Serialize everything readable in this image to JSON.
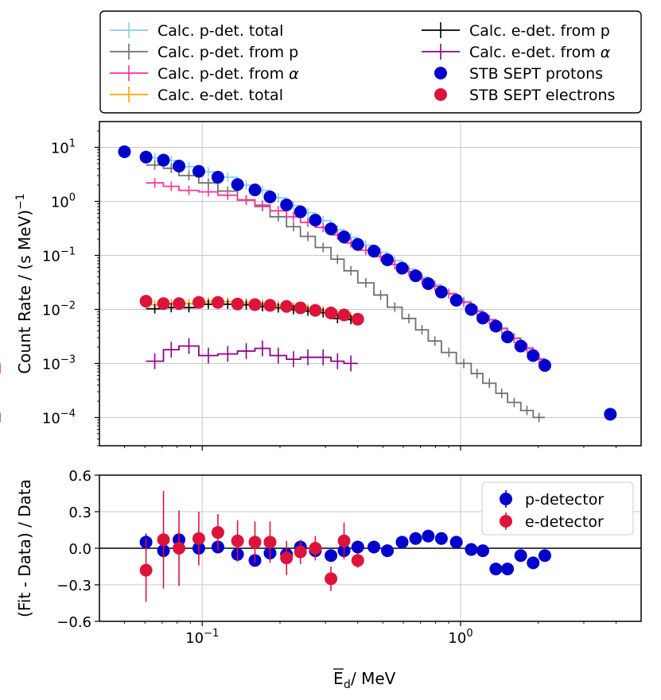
{
  "chart_data": [
    {
      "type": "scatter",
      "panel": "main",
      "xscale": "log",
      "yscale": "log",
      "xlim": [
        0.04,
        5.0
      ],
      "ylim": [
        3e-05,
        30
      ],
      "ylabel_main": "Count Rate / (s MeV)",
      "ylabel_exp": "−1",
      "yticks": [
        {
          "value": 10,
          "base": "10",
          "exp": "1"
        },
        {
          "value": 1,
          "base": "10",
          "exp": "0"
        },
        {
          "value": 0.1,
          "base": "10",
          "exp": "−1"
        },
        {
          "value": 0.01,
          "base": "10",
          "exp": "−2"
        },
        {
          "value": 0.001,
          "base": "10",
          "exp": "−3"
        },
        {
          "value": 0.0001,
          "base": "10",
          "exp": "−4"
        }
      ],
      "legend_position": "above",
      "legend": [
        {
          "label_pre": "Calc. p-det. total",
          "label_greek": "",
          "color": "#87ceeb",
          "kind": "step"
        },
        {
          "label_pre": "Calc. p-det. from p",
          "label_greek": "",
          "color": "#707070",
          "kind": "step"
        },
        {
          "label_pre": "Calc. p-det. from ",
          "label_greek": "α",
          "color": "#ff3399",
          "kind": "step"
        },
        {
          "label_pre": "Calc. e-det. total",
          "label_greek": "",
          "color": "#ffa500",
          "kind": "step"
        },
        {
          "label_pre": "Calc. e-det. from p",
          "label_greek": "",
          "color": "#000000",
          "kind": "step"
        },
        {
          "label_pre": "Calc. e-det. from ",
          "label_greek": "α",
          "color": "#8b008b",
          "kind": "step"
        },
        {
          "label_pre": "STB SEPT protons",
          "label_greek": "",
          "color": "#0000cd",
          "kind": "marker"
        },
        {
          "label_pre": "STB SEPT electrons",
          "label_greek": "",
          "color": "#dc143c",
          "kind": "marker"
        }
      ],
      "series": [
        {
          "name": "STB SEPT protons",
          "kind": "points",
          "color": "#0000cd",
          "x": [
            0.05,
            0.0606,
            0.0708,
            0.0813,
            0.097,
            0.115,
            0.137,
            0.16,
            0.183,
            0.212,
            0.24,
            0.274,
            0.315,
            0.354,
            0.4,
            0.462,
            0.521,
            0.594,
            0.67,
            0.75,
            0.843,
            0.963,
            1.1,
            1.22,
            1.37,
            1.52,
            1.71,
            1.91,
            2.12,
            3.8
          ],
          "y": [
            8.3,
            6.6,
            5.8,
            4.5,
            3.6,
            2.8,
            2.05,
            1.63,
            1.21,
            0.86,
            0.64,
            0.45,
            0.31,
            0.22,
            0.16,
            0.12,
            0.083,
            0.058,
            0.042,
            0.03,
            0.021,
            0.0148,
            0.01,
            0.0069,
            0.0049,
            0.0031,
            0.0021,
            0.0014,
            0.00092,
            0.000115
          ]
        },
        {
          "name": "STB SEPT electrons",
          "kind": "points",
          "color": "#dc143c",
          "x": [
            0.0606,
            0.0708,
            0.0813,
            0.097,
            0.115,
            0.137,
            0.16,
            0.183,
            0.212,
            0.24,
            0.274,
            0.315,
            0.354,
            0.4
          ],
          "y": [
            0.0142,
            0.0128,
            0.0128,
            0.0135,
            0.0135,
            0.0126,
            0.0123,
            0.0119,
            0.0114,
            0.0107,
            0.0096,
            0.0086,
            0.0079,
            0.0066
          ]
        },
        {
          "name": "Calc. p-det. total",
          "kind": "step",
          "color": "#87ceeb",
          "edges": [
            0.0606,
            0.0708,
            0.0813,
            0.097,
            0.115,
            0.137,
            0.16,
            0.183,
            0.212,
            0.24,
            0.274,
            0.315,
            0.354,
            0.4,
            0.462,
            0.521,
            0.594,
            0.67,
            0.75,
            0.843,
            0.963,
            1.1,
            1.22,
            1.37,
            1.52,
            1.71,
            1.91,
            2.12
          ],
          "values": [
            6.4,
            5.7,
            4.4,
            3.5,
            2.8,
            2.0,
            1.6,
            1.17,
            0.84,
            0.62,
            0.44,
            0.3,
            0.215,
            0.155,
            0.114,
            0.08,
            0.056,
            0.04,
            0.029,
            0.02,
            0.0142,
            0.0096,
            0.0066,
            0.0046,
            0.003,
            0.002,
            0.00125,
            0.00085
          ]
        },
        {
          "name": "Calc. p-det. from p",
          "kind": "step",
          "color": "#707070",
          "edges": [
            0.0606,
            0.0708,
            0.0813,
            0.097,
            0.115,
            0.137,
            0.16,
            0.183,
            0.212,
            0.24,
            0.274,
            0.315,
            0.354,
            0.4,
            0.462,
            0.521,
            0.594,
            0.67,
            0.75,
            0.843,
            0.963,
            1.1,
            1.22,
            1.37,
            1.52,
            1.71,
            1.91,
            2.12
          ],
          "values": [
            4.7,
            4.1,
            3.0,
            2.2,
            1.55,
            1.07,
            0.8,
            0.52,
            0.34,
            0.225,
            0.14,
            0.085,
            0.052,
            0.031,
            0.0185,
            0.011,
            0.0068,
            0.0042,
            0.0026,
            0.0016,
            0.001,
            0.00065,
            0.00043,
            0.00028,
            0.00019,
            0.000135,
            0.0001,
            0.0001
          ]
        },
        {
          "name": "Calc. p-det. from α",
          "kind": "step",
          "color": "#ff3399",
          "edges": [
            0.0606,
            0.0708,
            0.0813,
            0.097,
            0.115,
            0.137,
            0.16,
            0.183,
            0.212,
            0.24,
            0.274,
            0.315,
            0.354,
            0.4,
            0.462,
            0.521,
            0.594,
            0.67,
            0.75,
            0.843,
            0.963,
            1.1,
            1.22,
            1.37,
            1.52,
            1.71,
            1.91,
            2.12
          ],
          "values": [
            2.2,
            1.9,
            1.6,
            1.5,
            1.3,
            1.05,
            0.85,
            0.67,
            0.52,
            0.41,
            0.33,
            0.24,
            0.17,
            0.125,
            0.095,
            0.068,
            0.05,
            0.037,
            0.027,
            0.0195,
            0.0135,
            0.0092,
            0.0064,
            0.0044,
            0.0029,
            0.0019,
            0.0012,
            0.0008
          ]
        },
        {
          "name": "Calc. e-det. total",
          "kind": "step",
          "color": "#ffa500",
          "edges": [
            0.0606,
            0.0708,
            0.0813,
            0.097,
            0.115,
            0.137,
            0.16,
            0.183,
            0.212,
            0.24,
            0.274,
            0.315,
            0.354,
            0.4
          ],
          "values": [
            0.0122,
            0.0128,
            0.0128,
            0.0138,
            0.0138,
            0.0133,
            0.0126,
            0.012,
            0.011,
            0.0103,
            0.0095,
            0.008,
            0.0072
          ]
        },
        {
          "name": "Calc. e-det. from p",
          "kind": "step",
          "color": "#000000",
          "edges": [
            0.0606,
            0.0708,
            0.0813,
            0.097,
            0.115,
            0.137,
            0.16,
            0.183,
            0.212,
            0.24,
            0.274,
            0.315,
            0.354,
            0.4
          ],
          "values": [
            0.0103,
            0.0108,
            0.0108,
            0.0125,
            0.0125,
            0.0122,
            0.0113,
            0.0107,
            0.0099,
            0.0093,
            0.0087,
            0.0068,
            0.0065
          ]
        },
        {
          "name": "Calc. e-det. from α",
          "kind": "step",
          "color": "#8b008b",
          "edges": [
            0.0606,
            0.0708,
            0.0813,
            0.097,
            0.115,
            0.137,
            0.16,
            0.183,
            0.212,
            0.24,
            0.274,
            0.315,
            0.354,
            0.4
          ],
          "values": [
            0.0011,
            0.0018,
            0.0021,
            0.0014,
            0.0015,
            0.0017,
            0.0019,
            0.0014,
            0.0012,
            0.0013,
            0.0013,
            0.0011,
            0.001
          ]
        }
      ]
    },
    {
      "type": "scatter",
      "panel": "residual",
      "xscale": "log",
      "xlim": [
        0.04,
        5.0
      ],
      "ylim": [
        -0.6,
        0.6
      ],
      "yticks": [
        0.6,
        0.3,
        0.0,
        -0.3,
        -0.6
      ],
      "ytick_labels": [
        "0.6",
        "0.3",
        "0.0",
        "−0.3",
        "−0.6"
      ],
      "ylabel": "(Fit - Data) / Data",
      "xlabel_symbol": "E",
      "xlabel_sub": "d",
      "xlabel_unit": " / MeV",
      "xticks": [
        {
          "value": 0.1,
          "base": "10",
          "exp": "−1"
        },
        {
          "value": 1,
          "base": "10",
          "exp": "0"
        }
      ],
      "legend_position": "top-right",
      "legend": [
        {
          "label": "p-detector",
          "color": "#0000cd"
        },
        {
          "label": "e-detector",
          "color": "#dc143c"
        }
      ],
      "series": [
        {
          "name": "p-detector",
          "color": "#0000cd",
          "x": [
            0.0606,
            0.0708,
            0.0813,
            0.097,
            0.115,
            0.137,
            0.16,
            0.183,
            0.212,
            0.24,
            0.274,
            0.315,
            0.354,
            0.4,
            0.462,
            0.521,
            0.594,
            0.67,
            0.75,
            0.843,
            0.963,
            1.1,
            1.22,
            1.37,
            1.52,
            1.71,
            1.91,
            2.12
          ],
          "y": [
            0.05,
            -0.02,
            0.07,
            0.0,
            0.01,
            -0.05,
            -0.1,
            -0.04,
            -0.05,
            0.01,
            -0.02,
            -0.06,
            -0.02,
            0.01,
            0.01,
            -0.02,
            0.05,
            0.08,
            0.1,
            0.08,
            0.05,
            -0.01,
            -0.02,
            -0.17,
            -0.17,
            -0.06,
            -0.12,
            -0.06
          ],
          "err": [
            0.07,
            0.05,
            0.05,
            0.04,
            0.04,
            0.04,
            0.04,
            0.04,
            0.04,
            0.04,
            0.04,
            0.04,
            0.04,
            0.04,
            0.04,
            0.04,
            0.04,
            0.04,
            0.05,
            0.05,
            0.05,
            0.05,
            0.05,
            0.05,
            0.05,
            0.05,
            0.05,
            0.05
          ]
        },
        {
          "name": "e-detector",
          "color": "#dc143c",
          "x": [
            0.0606,
            0.0708,
            0.0813,
            0.097,
            0.115,
            0.137,
            0.16,
            0.183,
            0.212,
            0.24,
            0.274,
            0.315,
            0.354,
            0.4
          ],
          "y": [
            -0.18,
            0.07,
            0.0,
            0.08,
            0.13,
            0.06,
            0.05,
            0.05,
            -0.08,
            -0.03,
            0.0,
            -0.25,
            0.06,
            -0.1
          ],
          "err": [
            0.26,
            0.4,
            0.31,
            0.22,
            0.15,
            0.17,
            0.17,
            0.17,
            0.14,
            0.1,
            0.1,
            0.1,
            0.15,
            0.06
          ]
        }
      ]
    }
  ]
}
